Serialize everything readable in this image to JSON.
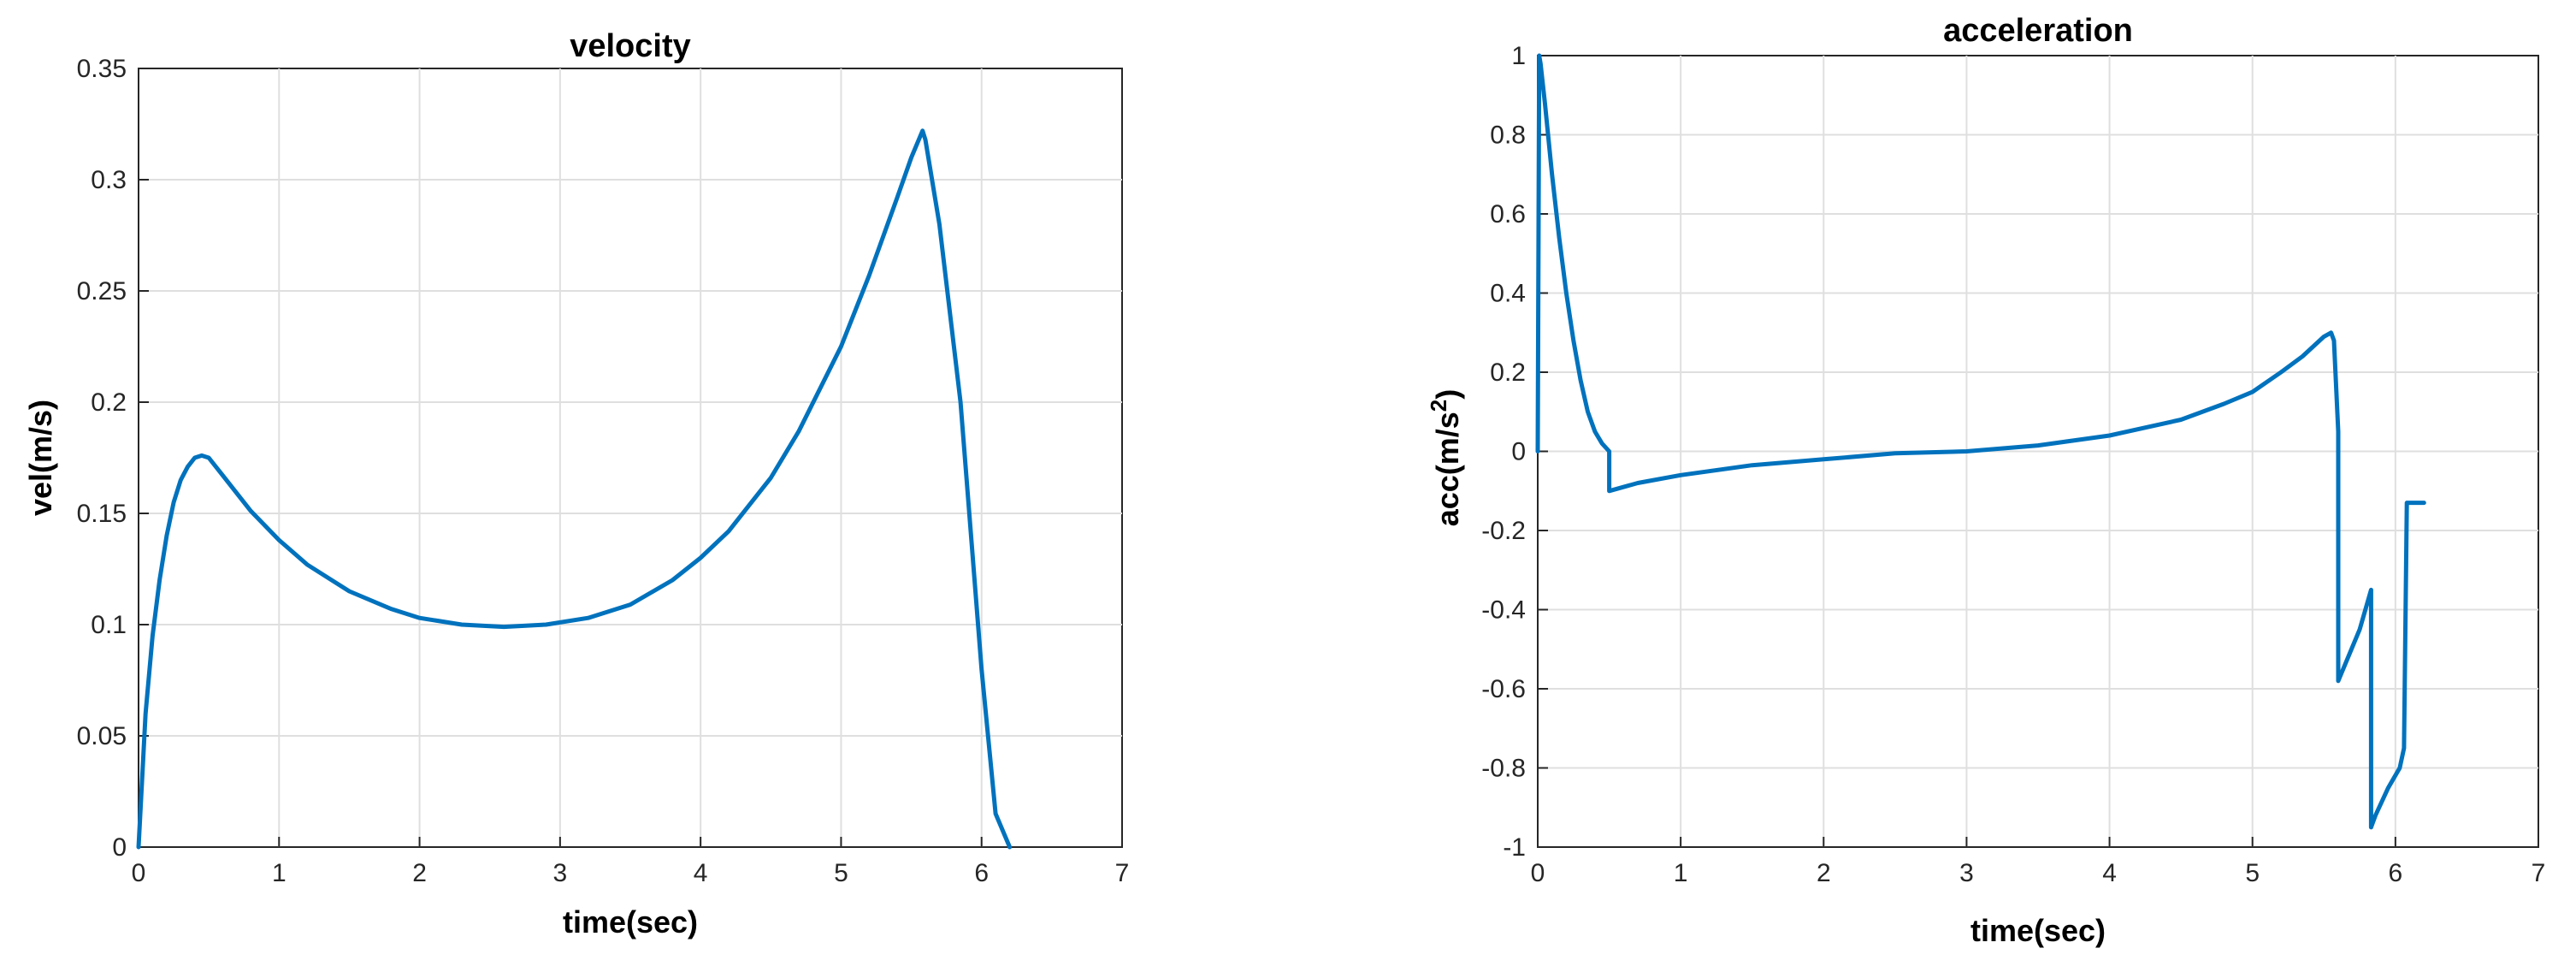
{
  "colors": {
    "series": "#0072BD",
    "axes": "#262626",
    "grid": "#dfdfdf"
  },
  "chart_data": [
    {
      "type": "line",
      "title": "velocity",
      "xlabel": "time(sec)",
      "ylabel": "vel(m/s)",
      "xlim": [
        0,
        7
      ],
      "ylim": [
        0,
        0.35
      ],
      "grid": true,
      "x_ticks": [
        0,
        1,
        2,
        3,
        4,
        5,
        6,
        7
      ],
      "x_tick_labels": [
        "0",
        "1",
        "2",
        "3",
        "4",
        "5",
        "6",
        "7"
      ],
      "y_ticks": [
        0,
        0.05,
        0.1,
        0.15,
        0.2,
        0.25,
        0.3,
        0.35
      ],
      "y_tick_labels": [
        "0",
        "0.05",
        "0.1",
        "0.15",
        "0.2",
        "0.25",
        "0.3",
        "0.35"
      ],
      "series": [
        {
          "x": [
            0,
            0.05,
            0.1,
            0.15,
            0.2,
            0.25,
            0.3,
            0.35,
            0.4,
            0.45,
            0.5,
            0.6,
            0.8,
            1.0,
            1.2,
            1.5,
            1.8,
            2.0,
            2.3,
            2.6,
            2.9,
            3.2,
            3.5,
            3.8,
            4.0,
            4.2,
            4.5,
            4.7,
            5.0,
            5.2,
            5.4,
            5.5,
            5.58,
            5.6,
            5.7,
            5.85,
            6.0,
            6.1,
            6.2
          ],
          "y": [
            0,
            0.06,
            0.095,
            0.12,
            0.14,
            0.155,
            0.165,
            0.171,
            0.175,
            0.176,
            0.175,
            0.167,
            0.151,
            0.138,
            0.127,
            0.115,
            0.107,
            0.103,
            0.1,
            0.099,
            0.1,
            0.103,
            0.109,
            0.12,
            0.13,
            0.142,
            0.166,
            0.187,
            0.225,
            0.257,
            0.292,
            0.31,
            0.322,
            0.318,
            0.28,
            0.2,
            0.08,
            0.015,
            0
          ]
        }
      ]
    },
    {
      "type": "line",
      "title": "acceleration",
      "xlabel": "time(sec)",
      "ylabel": "acc(m/s",
      "ylabel_sup": "2",
      "ylabel_end": ")",
      "xlim": [
        0,
        7
      ],
      "ylim": [
        -1,
        1
      ],
      "grid": true,
      "x_ticks": [
        0,
        1,
        2,
        3,
        4,
        5,
        6,
        7
      ],
      "x_tick_labels": [
        "0",
        "1",
        "2",
        "3",
        "4",
        "5",
        "6",
        "7"
      ],
      "y_ticks": [
        -1,
        -0.8,
        -0.6,
        -0.4,
        -0.2,
        0,
        0.2,
        0.4,
        0.6,
        0.8,
        1
      ],
      "y_tick_labels": [
        "-1",
        "-0.8",
        "-0.6",
        "-0.4",
        "-0.2",
        "0",
        "0.2",
        "0.4",
        "0.6",
        "0.8",
        "1"
      ],
      "series": [
        {
          "x": [
            0,
            0.01,
            0.02,
            0.05,
            0.1,
            0.15,
            0.2,
            0.25,
            0.3,
            0.35,
            0.4,
            0.45,
            0.5,
            0.5,
            0.7,
            1.0,
            1.5,
            2.0,
            2.5,
            3.0,
            3.5,
            4.0,
            4.5,
            4.8,
            5.0,
            5.2,
            5.35,
            5.5,
            5.55,
            5.57,
            5.6,
            5.6,
            5.75,
            5.83,
            5.83,
            5.86,
            5.95,
            6.03,
            6.06,
            6.06,
            6.08,
            6.08,
            6.2
          ],
          "y": [
            0,
            1.0,
            0.98,
            0.88,
            0.7,
            0.54,
            0.4,
            0.28,
            0.18,
            0.1,
            0.05,
            0.02,
            0.0,
            -0.1,
            -0.08,
            -0.06,
            -0.035,
            -0.02,
            -0.005,
            0.0,
            0.015,
            0.04,
            0.08,
            0.12,
            0.15,
            0.2,
            0.24,
            0.29,
            0.3,
            0.28,
            0.05,
            -0.58,
            -0.45,
            -0.35,
            -0.95,
            -0.92,
            -0.85,
            -0.8,
            -0.75,
            -0.75,
            -0.13,
            -0.13,
            -0.13
          ]
        }
      ]
    }
  ]
}
